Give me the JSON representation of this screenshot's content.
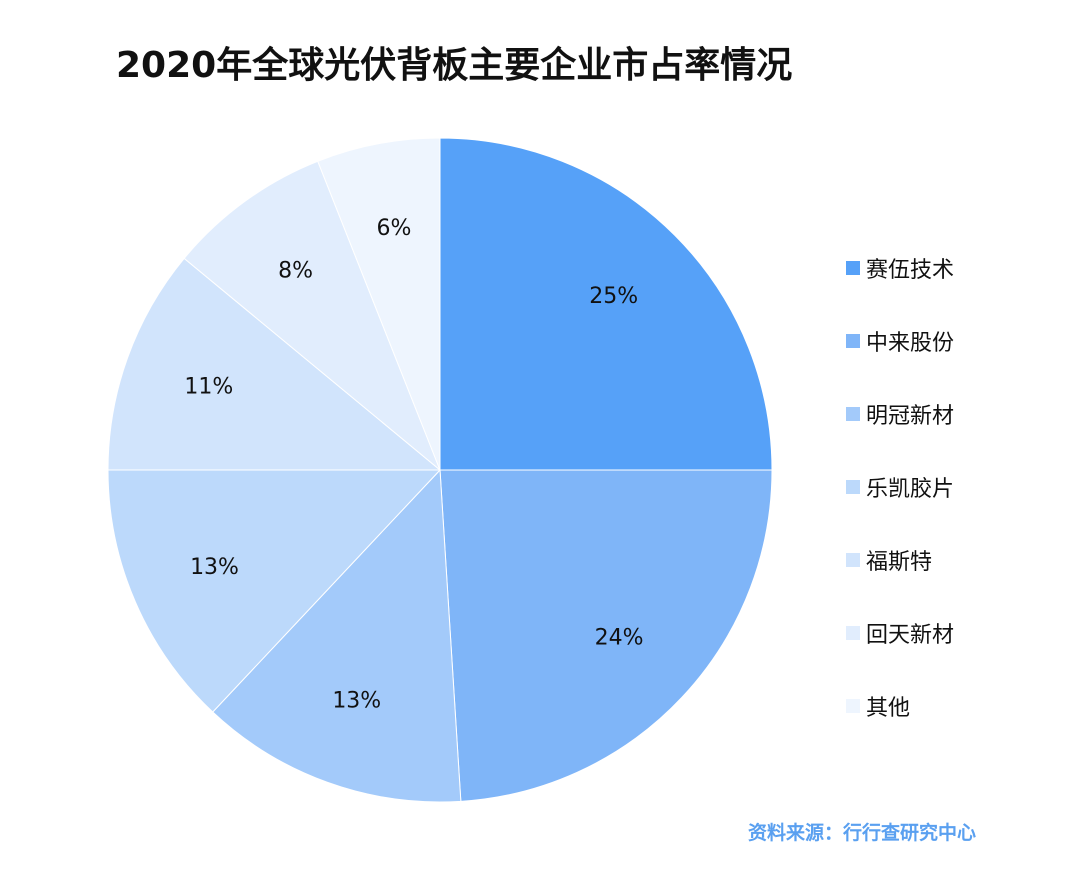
{
  "title": "2020年全球光伏背板主要企业市占率情况",
  "source": "资料来源：行行查研究中心",
  "chart_data": {
    "type": "pie",
    "title": "2020年全球光伏背板主要企业市占率情况",
    "legend_position": "right",
    "start_angle": "12 o'clock, clockwise",
    "slices": [
      {
        "name": "赛伍技术",
        "value": 25,
        "label": "25%",
        "color": "#56a1f8"
      },
      {
        "name": "中来股份",
        "value": 24,
        "label": "24%",
        "color": "#7fb5f8"
      },
      {
        "name": "明冠新材",
        "value": 13,
        "label": "13%",
        "color": "#a3cafa"
      },
      {
        "name": "乐凯胶片",
        "value": 13,
        "label": "13%",
        "color": "#bcd9fb"
      },
      {
        "name": "福斯特",
        "value": 11,
        "label": "11%",
        "color": "#d1e4fc"
      },
      {
        "name": "回天新材",
        "value": 8,
        "label": "8%",
        "color": "#e1edfd"
      },
      {
        "name": "其他",
        "value": 6,
        "label": "6%",
        "color": "#eef5fe"
      }
    ]
  }
}
